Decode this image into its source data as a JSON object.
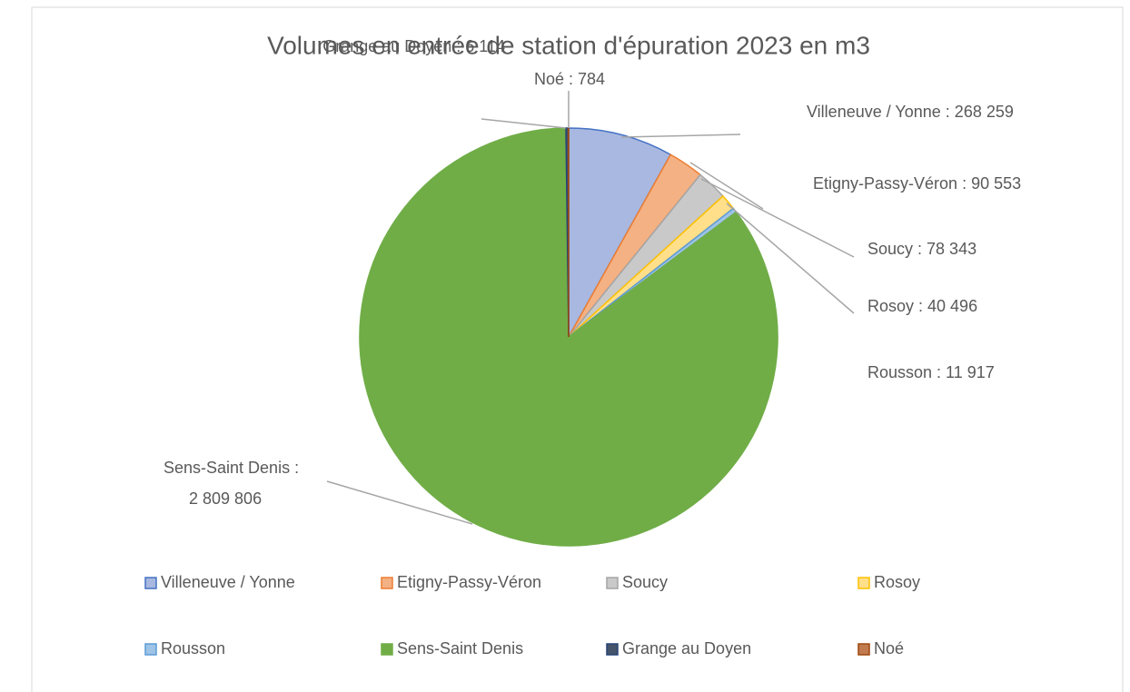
{
  "chart_data": {
    "type": "pie",
    "title": "Volumes en entrée de station d'épuration 2023 en m3",
    "categories": [
      "Villeneuve / Yonne",
      "Etigny-Passy-Véron",
      "Soucy",
      "Rosoy",
      "Rousson",
      "Sens-Saint Denis",
      "Grange au Doyen",
      "Noé"
    ],
    "values": [
      268259,
      90553,
      78343,
      40496,
      11917,
      2809806,
      6114,
      784
    ],
    "value_labels": [
      "Villeneuve / Yonne : 268 259",
      "Etigny-Passy-Véron : 90 553",
      "Soucy : 78 343",
      "Rosoy : 40 496",
      "Rousson : 11 917",
      "Sens-Saint Denis :\n2 809 806",
      "Grange au Doyen : 6 114",
      "Noé : 784"
    ],
    "colors": [
      "#a9b8e0",
      "#f4b183",
      "#c9c9c9",
      "#ffdf8a",
      "#9dc3e6",
      "#70ad47",
      "#44546a",
      "#c27a4f"
    ],
    "edge_colors": [
      "#4472c4",
      "#ed7d31",
      "#a5a5a5",
      "#ffc000",
      "#5b9bd5",
      "#70ad47",
      "#264478",
      "#9e480e"
    ],
    "legend": "bottom"
  }
}
